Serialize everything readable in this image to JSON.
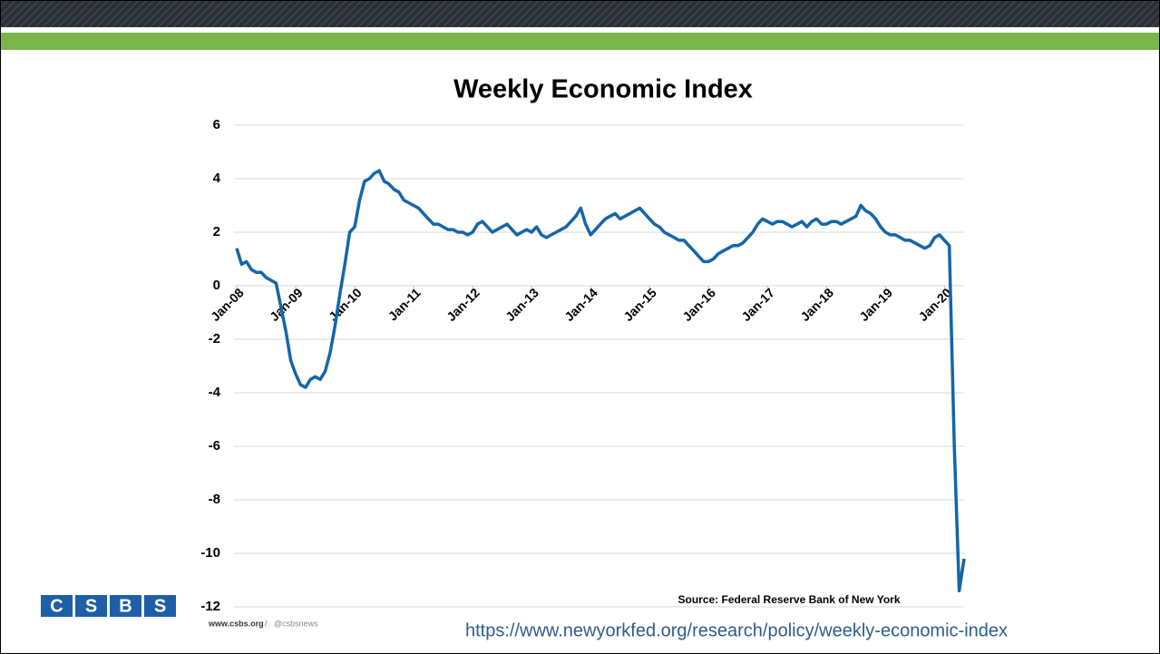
{
  "chart_data": {
    "type": "line",
    "title": "Weekly Economic Index",
    "x": [
      "2008-01",
      "2008-02",
      "2008-03",
      "2008-04",
      "2008-05",
      "2008-06",
      "2008-07",
      "2008-08",
      "2008-09",
      "2008-10",
      "2008-11",
      "2008-12",
      "2009-01",
      "2009-02",
      "2009-03",
      "2009-04",
      "2009-05",
      "2009-06",
      "2009-07",
      "2009-08",
      "2009-09",
      "2009-10",
      "2009-11",
      "2009-12",
      "2010-01",
      "2010-02",
      "2010-03",
      "2010-04",
      "2010-05",
      "2010-06",
      "2010-07",
      "2010-08",
      "2010-09",
      "2010-10",
      "2010-11",
      "2010-12",
      "2011-01",
      "2011-02",
      "2011-03",
      "2011-04",
      "2011-05",
      "2011-06",
      "2011-07",
      "2011-08",
      "2011-09",
      "2011-10",
      "2011-11",
      "2011-12",
      "2012-01",
      "2012-02",
      "2012-03",
      "2012-04",
      "2012-05",
      "2012-06",
      "2012-07",
      "2012-08",
      "2012-09",
      "2012-10",
      "2012-11",
      "2012-12",
      "2013-01",
      "2013-02",
      "2013-03",
      "2013-04",
      "2013-05",
      "2013-06",
      "2013-07",
      "2013-08",
      "2013-09",
      "2013-10",
      "2013-11",
      "2013-12",
      "2014-01",
      "2014-02",
      "2014-03",
      "2014-04",
      "2014-05",
      "2014-06",
      "2014-07",
      "2014-08",
      "2014-09",
      "2014-10",
      "2014-11",
      "2014-12",
      "2015-01",
      "2015-02",
      "2015-03",
      "2015-04",
      "2015-05",
      "2015-06",
      "2015-07",
      "2015-08",
      "2015-09",
      "2015-10",
      "2015-11",
      "2015-12",
      "2016-01",
      "2016-02",
      "2016-03",
      "2016-04",
      "2016-05",
      "2016-06",
      "2016-07",
      "2016-08",
      "2016-09",
      "2016-10",
      "2016-11",
      "2016-12",
      "2017-01",
      "2017-02",
      "2017-03",
      "2017-04",
      "2017-05",
      "2017-06",
      "2017-07",
      "2017-08",
      "2017-09",
      "2017-10",
      "2017-11",
      "2017-12",
      "2018-01",
      "2018-02",
      "2018-03",
      "2018-04",
      "2018-05",
      "2018-06",
      "2018-07",
      "2018-08",
      "2018-09",
      "2018-10",
      "2018-11",
      "2018-12",
      "2019-01",
      "2019-02",
      "2019-03",
      "2019-04",
      "2019-05",
      "2019-06",
      "2019-07",
      "2019-08",
      "2019-09",
      "2019-10",
      "2019-11",
      "2019-12",
      "2020-01",
      "2020-02",
      "2020-03",
      "2020-04",
      "2020-05"
    ],
    "values": [
      1.4,
      0.8,
      0.9,
      0.6,
      0.5,
      0.5,
      0.3,
      0.2,
      0.1,
      -0.8,
      -1.7,
      -2.8,
      -3.3,
      -3.7,
      -3.8,
      -3.5,
      -3.4,
      -3.5,
      -3.2,
      -2.5,
      -1.5,
      -0.3,
      0.8,
      2.0,
      2.2,
      3.2,
      3.9,
      4.0,
      4.2,
      4.3,
      3.9,
      3.8,
      3.6,
      3.5,
      3.2,
      3.1,
      3.0,
      2.9,
      2.7,
      2.5,
      2.3,
      2.3,
      2.2,
      2.1,
      2.1,
      2.0,
      2.0,
      1.9,
      2.0,
      2.3,
      2.4,
      2.2,
      2.0,
      2.1,
      2.2,
      2.3,
      2.1,
      1.9,
      2.0,
      2.1,
      2.0,
      2.2,
      1.9,
      1.8,
      1.9,
      2.0,
      2.1,
      2.2,
      2.4,
      2.6,
      2.9,
      2.3,
      1.9,
      2.1,
      2.3,
      2.5,
      2.6,
      2.7,
      2.5,
      2.6,
      2.7,
      2.8,
      2.9,
      2.7,
      2.5,
      2.3,
      2.2,
      2.0,
      1.9,
      1.8,
      1.7,
      1.7,
      1.5,
      1.3,
      1.1,
      0.9,
      0.9,
      1.0,
      1.2,
      1.3,
      1.4,
      1.5,
      1.5,
      1.6,
      1.8,
      2.0,
      2.3,
      2.5,
      2.4,
      2.3,
      2.4,
      2.4,
      2.3,
      2.2,
      2.3,
      2.4,
      2.2,
      2.4,
      2.5,
      2.3,
      2.3,
      2.4,
      2.4,
      2.3,
      2.4,
      2.5,
      2.6,
      3.0,
      2.8,
      2.7,
      2.5,
      2.2,
      2.0,
      1.9,
      1.9,
      1.8,
      1.7,
      1.7,
      1.6,
      1.5,
      1.4,
      1.5,
      1.8,
      1.9,
      1.7,
      1.5,
      -6.0,
      -11.4,
      -10.2
    ],
    "color": "#1565a8",
    "xlim": [
      "2008-01",
      "2020-05"
    ],
    "xticks": [
      {
        "value": "2008-01",
        "label": "Jan-08"
      },
      {
        "value": "2009-01",
        "label": "Jan-09"
      },
      {
        "value": "2010-01",
        "label": "Jan-10"
      },
      {
        "value": "2011-01",
        "label": "Jan-11"
      },
      {
        "value": "2012-01",
        "label": "Jan-12"
      },
      {
        "value": "2013-01",
        "label": "Jan-13"
      },
      {
        "value": "2014-01",
        "label": "Jan-14"
      },
      {
        "value": "2015-01",
        "label": "Jan-15"
      },
      {
        "value": "2016-01",
        "label": "Jan-16"
      },
      {
        "value": "2017-01",
        "label": "Jan-17"
      },
      {
        "value": "2018-01",
        "label": "Jan-18"
      },
      {
        "value": "2019-01",
        "label": "Jan-19"
      },
      {
        "value": "2020-01",
        "label": "Jan-20"
      }
    ],
    "ylim": [
      -12,
      6
    ],
    "yticks": [
      -12,
      -10,
      -8,
      -6,
      -4,
      -2,
      0,
      2,
      4,
      6
    ],
    "grid": true,
    "source": "Source: Federal Reserve Bank of New York"
  },
  "footer": {
    "logo": [
      "C",
      "S",
      "B",
      "S"
    ],
    "site": "www.csbs.org",
    "separator": "/",
    "handle": "@csbsnews",
    "url": "https://www.newyorkfed.org/research/policy/weekly-economic-index"
  }
}
